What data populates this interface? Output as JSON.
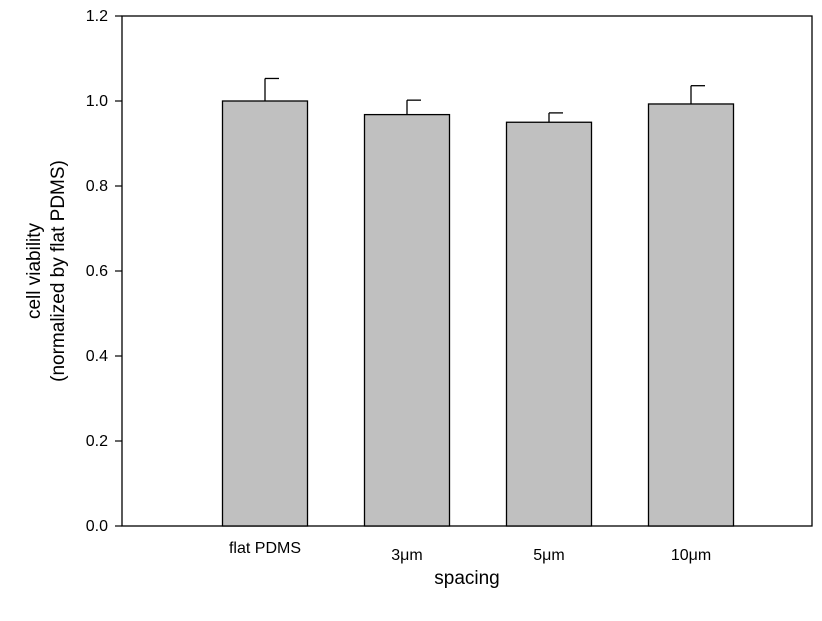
{
  "chart_data": {
    "type": "bar",
    "title": "",
    "categories": [
      "flat PDMS",
      "3μm",
      "5μm",
      "10μm"
    ],
    "values": [
      1.0,
      0.968,
      0.95,
      0.993
    ],
    "error_plus": [
      0.053,
      0.034,
      0.022,
      0.043
    ],
    "xlabel": "spacing",
    "ylabel_line1": "cell viability",
    "ylabel_line2": "(normalized by flat PDMS)",
    "ylim": [
      0,
      1.2
    ],
    "yticks": [
      "0.0",
      "0.2",
      "0.4",
      "0.6",
      "0.8",
      "1.0",
      "1.2"
    ],
    "bar_color": "#c0c0c0",
    "grid": false,
    "legend": "none"
  }
}
